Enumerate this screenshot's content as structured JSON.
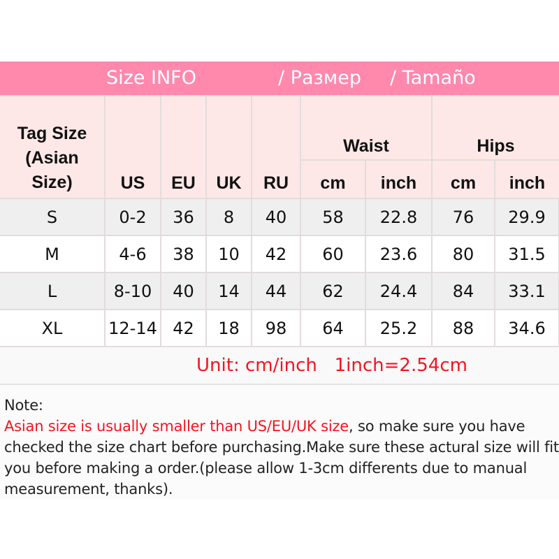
{
  "banner": {
    "title": "Size INFO",
    "ru": "/  Размер",
    "es": "/  Tamaño",
    "color": "#ff88ad"
  },
  "header": {
    "tag_size": [
      "Tag Size",
      "(Asian",
      "Size)"
    ],
    "us": "US",
    "eu": "EU",
    "uk": "UK",
    "ru": "RU",
    "waist": "Waist",
    "hips": "Hips",
    "cm": "cm",
    "inch": "inch"
  },
  "rows": [
    {
      "tag": "S",
      "us": "0-2",
      "eu": "36",
      "uk": "8",
      "ru": "40",
      "waist_cm": "58",
      "waist_inch": "22.8",
      "hips_cm": "76",
      "hips_inch": "29.9"
    },
    {
      "tag": "M",
      "us": "4-6",
      "eu": "38",
      "uk": "10",
      "ru": "42",
      "waist_cm": "60",
      "waist_inch": "23.6",
      "hips_cm": "80",
      "hips_inch": "31.5"
    },
    {
      "tag": "L",
      "us": "8-10",
      "eu": "40",
      "uk": "14",
      "ru": "44",
      "waist_cm": "62",
      "waist_inch": "24.4",
      "hips_cm": "84",
      "hips_inch": "33.1"
    },
    {
      "tag": "XL",
      "us": "12-14",
      "eu": "42",
      "uk": "18",
      "ru": "98",
      "waist_cm": "64",
      "waist_inch": "25.2",
      "hips_cm": "88",
      "hips_inch": "34.6"
    }
  ],
  "unit": "Unit: cm/inch   1inch=2.54cm",
  "note": {
    "label": "Note:",
    "warning": "Asian size is usually smaller than US/EU/UK size",
    "text": ", so make sure you have checked the size chart before purchasing.Make sure these actural size will fit you before making a order.(please allow 1-3cm differents due to manual measurement, thanks)."
  }
}
